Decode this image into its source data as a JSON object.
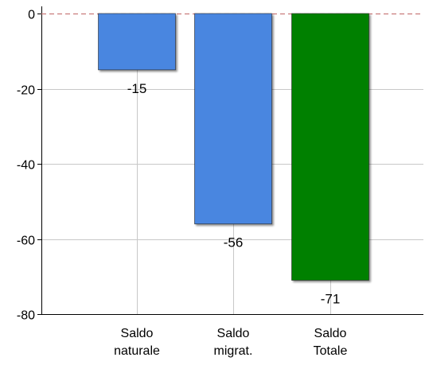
{
  "chart_data": {
    "type": "bar",
    "categories": [
      [
        "Saldo",
        "naturale"
      ],
      [
        "Saldo",
        "migrat."
      ],
      [
        "Saldo",
        "Totale"
      ]
    ],
    "values": [
      -15,
      -56,
      -71
    ],
    "data_labels": [
      "-15",
      "-56",
      "-71"
    ],
    "bar_colors": [
      "#4a86e0",
      "#4a86e0",
      "#008000"
    ],
    "ylim": [
      -80,
      0
    ],
    "yticks": [
      0,
      -20,
      -40,
      -60,
      -80
    ],
    "ytick_labels": [
      "0",
      "-20",
      "-40",
      "-60",
      "-80"
    ],
    "grid": true,
    "zero_line_color": "#c97a7a",
    "title": "",
    "xlabel": "",
    "ylabel": ""
  }
}
